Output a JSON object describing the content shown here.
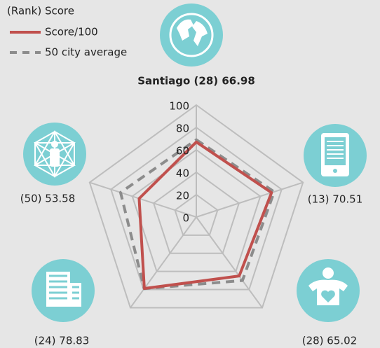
{
  "chart_data": {
    "type": "radar",
    "legend_title": "(Rank) Score",
    "categories": [
      "Santiago (28) 66.98",
      "(13) 70.51",
      "(28) 65.02",
      "(24) 78.83",
      "(50) 53.58"
    ],
    "series": [
      {
        "name": "Score/100",
        "color": "#c0504d",
        "dash": false,
        "values": [
          66.98,
          70.51,
          65.02,
          78.83,
          53.58
        ]
      },
      {
        "name": "50 city average",
        "color": "#8c8c8c",
        "dash": true,
        "values": [
          69,
          73,
          70,
          79,
          71
        ]
      }
    ],
    "ylim": [
      0,
      100
    ],
    "yticks": [
      0,
      20,
      40,
      60,
      80,
      100
    ],
    "grid": true
  }
}
